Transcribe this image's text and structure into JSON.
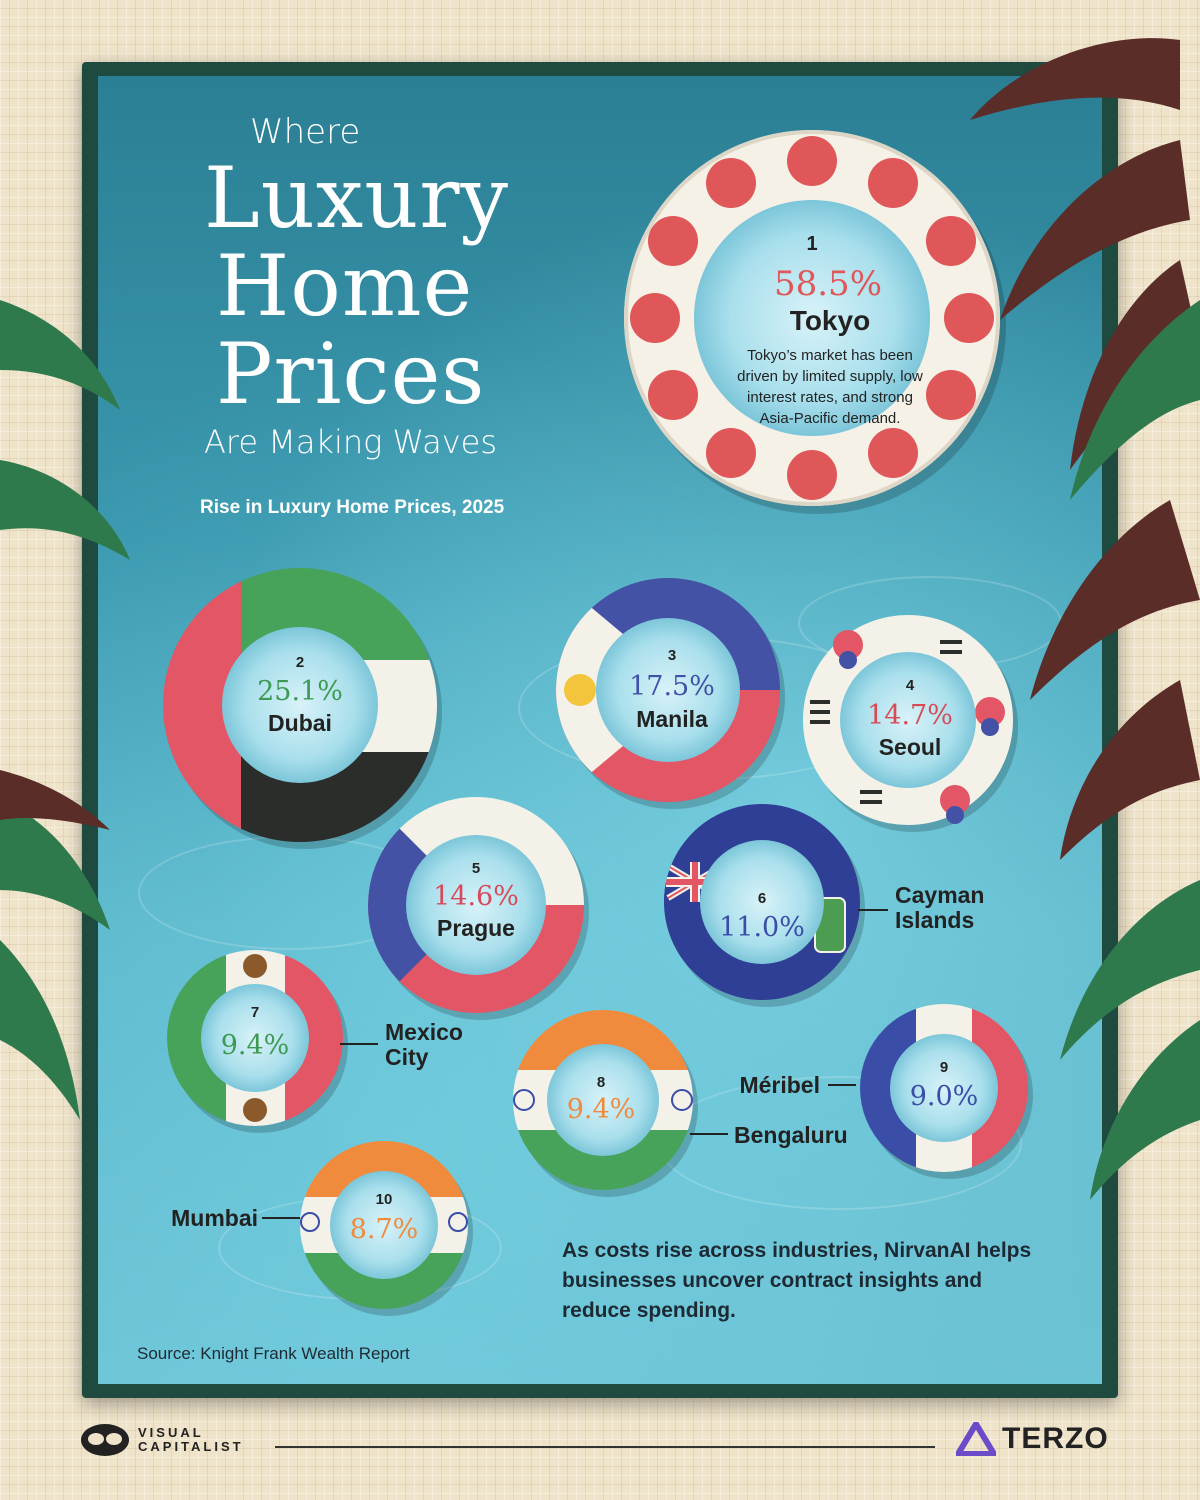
{
  "title": {
    "line1": "Where",
    "big1": "Luxury",
    "big2": "Home",
    "big3": "Prices",
    "line2": "Are Making Waves"
  },
  "subtitle": "Rise in Luxury Home Prices, 2025",
  "chart_data": {
    "type": "bar",
    "title": "Where Luxury Home Prices Are Making Waves",
    "subtitle": "Rise in Luxury Home Prices, 2025",
    "categories": [
      "Tokyo",
      "Dubai",
      "Manila",
      "Seoul",
      "Prague",
      "Cayman Islands",
      "Mexico City",
      "Bengaluru",
      "Méribel",
      "Mumbai"
    ],
    "values": [
      58.5,
      25.1,
      17.5,
      14.7,
      14.6,
      11.0,
      9.4,
      9.4,
      9.0,
      8.7
    ],
    "unit": "%",
    "items": [
      {
        "rank": "1",
        "pct": "58.5%",
        "city": "Tokyo",
        "city2": "",
        "color": "#e0575a",
        "desc": [
          "Tokyo’s market has been",
          "driven by limited supply, low",
          "interest rates, and strong",
          "Asia-Pacific demand."
        ]
      },
      {
        "rank": "2",
        "pct": "25.1%",
        "city": "Dubai",
        "city2": "",
        "color": "#3d9a52"
      },
      {
        "rank": "3",
        "pct": "17.5%",
        "city": "Manila",
        "city2": "",
        "color": "#3f52a8"
      },
      {
        "rank": "4",
        "pct": "14.7%",
        "city": "Seoul",
        "city2": "",
        "color": "#d84a55"
      },
      {
        "rank": "5",
        "pct": "14.6%",
        "city": "Prague",
        "city2": "",
        "color": "#d84a5a"
      },
      {
        "rank": "6",
        "pct": "11.0%",
        "city": "Cayman",
        "city2": "Islands",
        "color": "#3a4ea8"
      },
      {
        "rank": "7",
        "pct": "9.4%",
        "city": "Mexico",
        "city2": "City",
        "color": "#3d9a52"
      },
      {
        "rank": "8",
        "pct": "9.4%",
        "city": "Bengaluru",
        "city2": "",
        "color": "#f08a3c"
      },
      {
        "rank": "9",
        "pct": "9.0%",
        "city": "Méribel",
        "city2": "",
        "color": "#3a4ea8"
      },
      {
        "rank": "10",
        "pct": "8.7%",
        "city": "Mumbai",
        "city2": "",
        "color": "#f08a3c"
      }
    ]
  },
  "sponsor_text": "As costs rise across industries, NirvanAI helps businesses uncover contract insights and reduce spending.",
  "source": "Source: Knight Frank Wealth Report",
  "footer": {
    "vc_line1": "VISUAL",
    "vc_line2": "CAPITALIST",
    "terzo": "TERZO"
  },
  "colors": {
    "water": "#3a98ae",
    "frame": "#1f4a40",
    "tile": "#efe3c9",
    "palm_frond": "#2f7a4c",
    "palm_frond_dark": "#5a2d28"
  }
}
